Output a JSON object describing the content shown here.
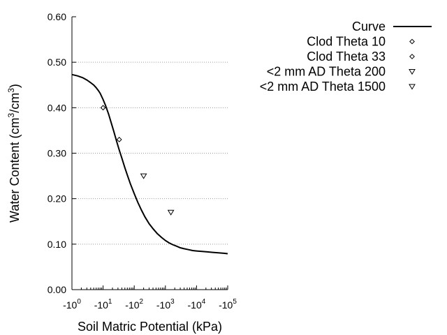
{
  "chart_data": {
    "type": "scatter",
    "xlabel": "Soil Matric Potential (kPa)",
    "ylabel": "Water Content (cm³/cm³)",
    "xscale": "log",
    "xlim": [
      1,
      100000
    ],
    "ylim": [
      0,
      0.6
    ],
    "grid": {
      "y": true,
      "x": false,
      "style": "dotted"
    },
    "legend_position": "top-right",
    "xticks": [
      {
        "value": 1,
        "base": "-10",
        "exp": "0"
      },
      {
        "value": 10,
        "base": "-10",
        "exp": "1"
      },
      {
        "value": 100,
        "base": "-10",
        "exp": "2"
      },
      {
        "value": 1000,
        "base": "-10",
        "exp": "3"
      },
      {
        "value": 10000,
        "base": "-10",
        "exp": "4"
      },
      {
        "value": 100000,
        "base": "-10",
        "exp": "5"
      }
    ],
    "yticks": [
      {
        "value": 0,
        "label": "0.00"
      },
      {
        "value": 0.1,
        "label": "0.10"
      },
      {
        "value": 0.2,
        "label": "0.20"
      },
      {
        "value": 0.3,
        "label": "0.30"
      },
      {
        "value": 0.4,
        "label": "0.40"
      },
      {
        "value": 0.5,
        "label": "0.50"
      },
      {
        "value": 0.6,
        "label": "0.60"
      }
    ],
    "series": [
      {
        "name": "Curve",
        "kind": "line",
        "color": "#000000",
        "x": [
          1,
          1.5,
          2.2,
          3,
          4,
          5,
          6,
          7,
          8,
          10,
          12,
          15,
          18,
          22,
          27,
          33,
          40,
          50,
          60,
          75,
          100,
          130,
          170,
          220,
          300,
          400,
          550,
          750,
          1000,
          1300,
          1700,
          2200,
          3000,
          4000,
          5500,
          7500,
          10000,
          15000,
          22000,
          33000,
          50000,
          75000,
          100000
        ],
        "y": [
          0.473,
          0.47,
          0.466,
          0.461,
          0.455,
          0.45,
          0.444,
          0.438,
          0.432,
          0.418,
          0.405,
          0.386,
          0.368,
          0.348,
          0.327,
          0.307,
          0.289,
          0.268,
          0.252,
          0.233,
          0.211,
          0.192,
          0.175,
          0.16,
          0.145,
          0.134,
          0.123,
          0.115,
          0.108,
          0.103,
          0.099,
          0.096,
          0.092,
          0.09,
          0.088,
          0.086,
          0.085,
          0.084,
          0.083,
          0.082,
          0.081,
          0.08,
          0.079
        ]
      },
      {
        "name": "Clod Theta 10",
        "kind": "point",
        "marker": "diamond",
        "color": "#000000",
        "x": [
          10
        ],
        "y": [
          0.4
        ]
      },
      {
        "name": "Clod Theta 33",
        "kind": "point",
        "marker": "diamond",
        "color": "#000000",
        "x": [
          33
        ],
        "y": [
          0.33
        ]
      },
      {
        "name": "<2 mm AD Theta 200",
        "kind": "point",
        "marker": "triangle-down",
        "color": "#000000",
        "x": [
          200
        ],
        "y": [
          0.25
        ]
      },
      {
        "name": "<2 mm AD Theta 1500",
        "kind": "point",
        "marker": "triangle-down",
        "color": "#000000",
        "x": [
          1500
        ],
        "y": [
          0.17
        ]
      }
    ]
  }
}
